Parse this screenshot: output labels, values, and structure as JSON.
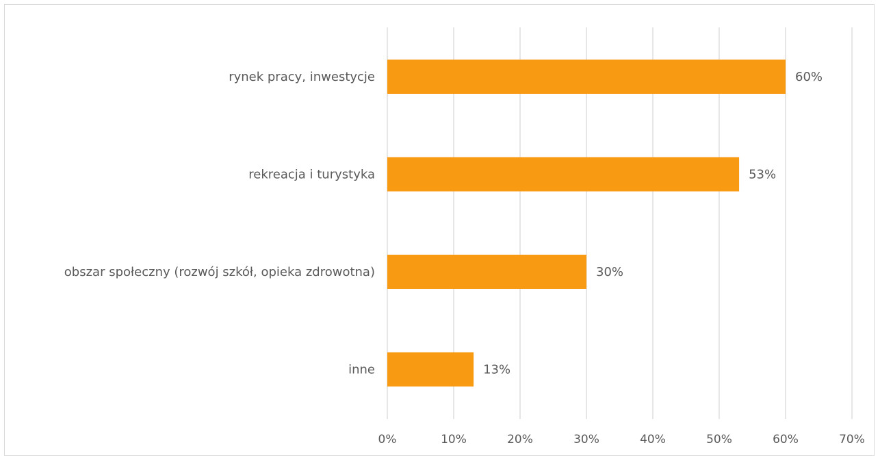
{
  "chart_data": {
    "type": "bar",
    "orientation": "horizontal",
    "title": "",
    "xlabel": "",
    "ylabel": "",
    "categories": [
      "rynek pracy, inwestycje",
      "rekreacja i turystyka",
      "obszar społeczny (rozwój szkół, opieka zdrowotna)",
      "inne"
    ],
    "values": [
      60,
      53,
      30,
      13
    ],
    "data_labels": [
      "60%",
      "53%",
      "30%",
      "13%"
    ],
    "xlim": [
      0,
      70
    ],
    "x_ticks": [
      "0%",
      "10%",
      "20%",
      "30%",
      "40%",
      "50%",
      "60%",
      "70%"
    ],
    "grid": "vertical",
    "legend": "none",
    "bar_color": "#F89A12",
    "grid_color": "#d9d9d9",
    "text_color": "#595959"
  }
}
